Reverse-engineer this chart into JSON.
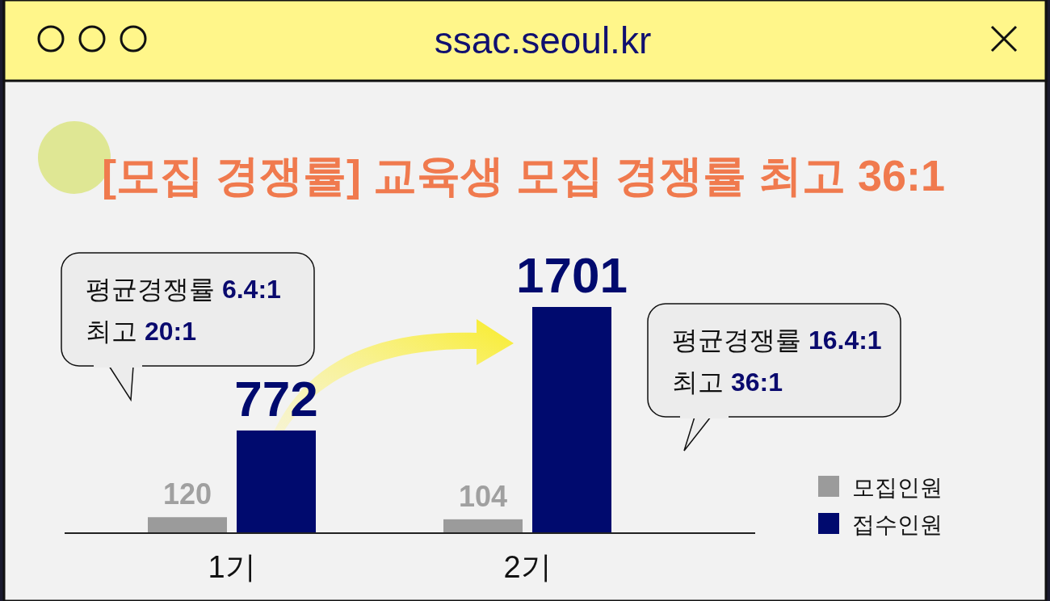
{
  "chart_data": {
    "type": "bar",
    "title": "[모집 경쟁률] 교육생 모집 경쟁률 최고 36:1",
    "categories": [
      "1기",
      "2기"
    ],
    "series": [
      {
        "name": "모집인원",
        "color": "#9b9b9b",
        "values": [
          120,
          104
        ]
      },
      {
        "name": "접수인원",
        "color": "#000a6e",
        "values": [
          772,
          1701
        ]
      }
    ],
    "data_labels": true,
    "legend": "right",
    "annotations": [
      "ssac.seoul.kr",
      "평균경쟁률 6.4:1",
      "최고 20:1",
      "평균경쟁률 16.4:1",
      "최고 36:1"
    ]
  }
}
